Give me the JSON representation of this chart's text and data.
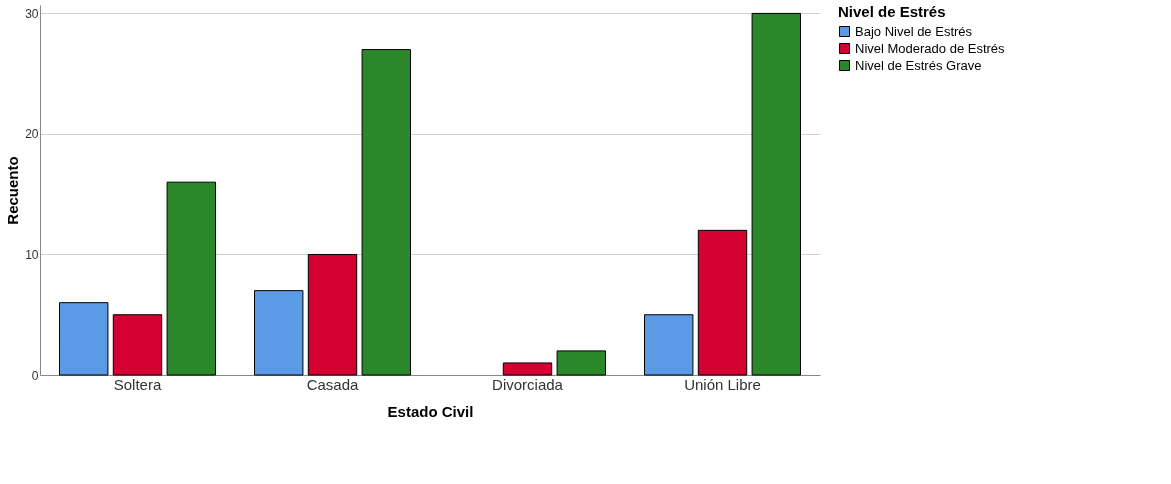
{
  "chart_data": {
    "type": "bar",
    "xlabel": "Estado Civil",
    "ylabel": "Recuento",
    "legend_title": "Nivel de Estrés",
    "categories": [
      "Soltera",
      "Casada",
      "Divorciada",
      "Unión Libre"
    ],
    "series": [
      {
        "name": "Bajo Nivel de Estrés",
        "color": "#5b9be6",
        "values": [
          6,
          7,
          null,
          5
        ]
      },
      {
        "name": "Nivel Moderado de Estrés",
        "color": "#d50032",
        "values": [
          5,
          10,
          1,
          12
        ]
      },
      {
        "name": "Nivel de Estrés Grave",
        "color": "#2a882a",
        "values": [
          16,
          27,
          2,
          30
        ]
      }
    ],
    "ylim": [
      0,
      30.7
    ],
    "yticks": [
      0,
      10,
      20,
      30
    ],
    "grid": "y",
    "legend": "top right"
  }
}
